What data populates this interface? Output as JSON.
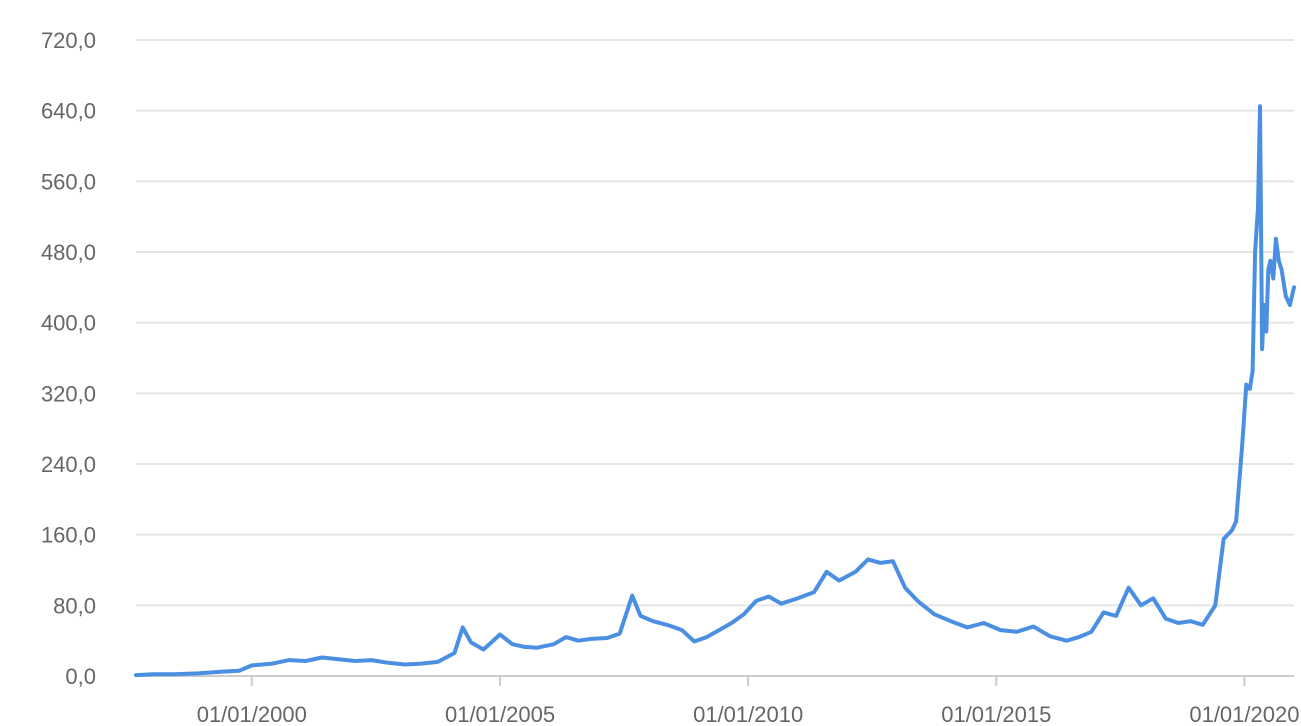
{
  "chart_data": {
    "type": "line",
    "title": "",
    "xlabel": "",
    "ylabel": "",
    "grid": true,
    "xlim": [
      "1997-09-01",
      "2020-12-31"
    ],
    "ylim": [
      0,
      720
    ],
    "y_ticks": [
      "0,0",
      "80,0",
      "160,0",
      "240,0",
      "320,0",
      "400,0",
      "480,0",
      "560,0",
      "640,0",
      "720,0"
    ],
    "y_tick_values": [
      0,
      80,
      160,
      240,
      320,
      400,
      480,
      560,
      640,
      720
    ],
    "x_ticks": [
      "01/01/2000",
      "01/01/2005",
      "01/01/2010",
      "01/01/2015",
      "01/01/2020"
    ],
    "x_tick_dates": [
      "2000-01-01",
      "2005-01-01",
      "2010-01-01",
      "2015-01-01",
      "2020-01-01"
    ],
    "line_color": "#4a8fe2",
    "series": [
      {
        "values": [
          [
            "1997-09-01",
            1
          ],
          [
            "1998-01-01",
            2
          ],
          [
            "1998-06-01",
            2
          ],
          [
            "1998-12-01",
            3
          ],
          [
            "1999-06-01",
            5
          ],
          [
            "1999-10-01",
            6
          ],
          [
            "2000-01-01",
            12
          ],
          [
            "2000-06-01",
            14
          ],
          [
            "2000-10-01",
            18
          ],
          [
            "2001-02-01",
            17
          ],
          [
            "2001-06-01",
            21
          ],
          [
            "2001-10-01",
            19
          ],
          [
            "2002-02-01",
            17
          ],
          [
            "2002-06-01",
            18
          ],
          [
            "2002-10-01",
            15
          ],
          [
            "2003-02-01",
            13
          ],
          [
            "2003-06-01",
            14
          ],
          [
            "2003-10-01",
            16
          ],
          [
            "2004-02-01",
            26
          ],
          [
            "2004-04-01",
            55
          ],
          [
            "2004-06-01",
            38
          ],
          [
            "2004-09-01",
            30
          ],
          [
            "2005-01-01",
            47
          ],
          [
            "2005-04-01",
            36
          ],
          [
            "2005-07-01",
            33
          ],
          [
            "2005-10-01",
            32
          ],
          [
            "2006-02-01",
            36
          ],
          [
            "2006-05-01",
            44
          ],
          [
            "2006-08-01",
            40
          ],
          [
            "2006-11-01",
            42
          ],
          [
            "2007-03-01",
            43
          ],
          [
            "2007-06-01",
            48
          ],
          [
            "2007-09-01",
            91
          ],
          [
            "2007-11-01",
            68
          ],
          [
            "2008-02-01",
            62
          ],
          [
            "2008-06-01",
            57
          ],
          [
            "2008-09-01",
            52
          ],
          [
            "2008-12-01",
            39
          ],
          [
            "2009-03-01",
            44
          ],
          [
            "2009-06-01",
            52
          ],
          [
            "2009-09-01",
            60
          ],
          [
            "2009-12-01",
            70
          ],
          [
            "2010-03-01",
            85
          ],
          [
            "2010-06-01",
            90
          ],
          [
            "2010-09-01",
            82
          ],
          [
            "2011-01-01",
            88
          ],
          [
            "2011-05-01",
            95
          ],
          [
            "2011-08-01",
            118
          ],
          [
            "2011-11-01",
            108
          ],
          [
            "2012-03-01",
            118
          ],
          [
            "2012-06-01",
            132
          ],
          [
            "2012-09-01",
            128
          ],
          [
            "2012-12-01",
            130
          ],
          [
            "2013-03-01",
            100
          ],
          [
            "2013-06-01",
            85
          ],
          [
            "2013-10-01",
            70
          ],
          [
            "2014-02-01",
            62
          ],
          [
            "2014-06-01",
            55
          ],
          [
            "2014-10-01",
            60
          ],
          [
            "2015-02-01",
            52
          ],
          [
            "2015-06-01",
            50
          ],
          [
            "2015-10-01",
            56
          ],
          [
            "2016-02-01",
            45
          ],
          [
            "2016-06-01",
            40
          ],
          [
            "2016-09-01",
            44
          ],
          [
            "2016-12-01",
            50
          ],
          [
            "2017-03-01",
            72
          ],
          [
            "2017-06-01",
            68
          ],
          [
            "2017-09-01",
            100
          ],
          [
            "2017-12-01",
            80
          ],
          [
            "2018-03-01",
            88
          ],
          [
            "2018-06-01",
            65
          ],
          [
            "2018-09-01",
            60
          ],
          [
            "2018-12-01",
            62
          ],
          [
            "2019-03-01",
            58
          ],
          [
            "2019-06-01",
            80
          ],
          [
            "2019-08-01",
            155
          ],
          [
            "2019-10-01",
            165
          ],
          [
            "2019-11-01",
            175
          ],
          [
            "2019-12-15",
            260
          ],
          [
            "2020-01-15",
            330
          ],
          [
            "2020-02-10",
            325
          ],
          [
            "2020-03-01",
            345
          ],
          [
            "2020-03-20",
            480
          ],
          [
            "2020-04-10",
            530
          ],
          [
            "2020-04-25",
            645
          ],
          [
            "2020-05-10",
            370
          ],
          [
            "2020-05-25",
            420
          ],
          [
            "2020-06-10",
            390
          ],
          [
            "2020-06-25",
            460
          ],
          [
            "2020-07-10",
            470
          ],
          [
            "2020-08-01",
            450
          ],
          [
            "2020-08-20",
            495
          ],
          [
            "2020-09-10",
            470
          ],
          [
            "2020-10-01",
            460
          ],
          [
            "2020-11-01",
            430
          ],
          [
            "2020-12-01",
            420
          ],
          [
            "2020-12-31",
            440
          ]
        ]
      }
    ]
  }
}
